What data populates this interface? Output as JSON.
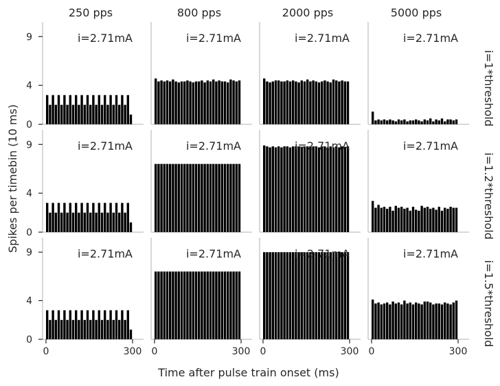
{
  "chart_data": {
    "type": "bar",
    "ylabel": "Spikes per timebin (10 ms)",
    "xlabel": "Time after pulse train onset (ms)",
    "column_titles": [
      "250 pps",
      "800 pps",
      "2000 pps",
      "5000 pps"
    ],
    "row_titles": [
      "i=1*threshold",
      "i=1.2*threshold",
      "i=1.5*threshold"
    ],
    "annotation": "i=2.71mA",
    "xlim": [
      0,
      300
    ],
    "ylim": [
      0,
      10.5
    ],
    "xticks": [
      0,
      300
    ],
    "yticks": [
      0,
      4,
      9
    ],
    "bin_width_ms": 10,
    "grid": false,
    "panels": [
      {
        "row": 0,
        "col": 0,
        "x": [
          0,
          10,
          20,
          30,
          40,
          50,
          60,
          70,
          80,
          90,
          100,
          110,
          120,
          130,
          140,
          150,
          160,
          170,
          180,
          190,
          200,
          210,
          220,
          230,
          240,
          250,
          260,
          270,
          280,
          290
        ],
        "values": [
          3,
          2,
          3,
          2,
          3,
          2,
          3,
          2,
          3,
          2,
          3,
          2,
          3,
          2,
          3,
          2,
          3,
          2,
          3,
          2,
          3,
          2,
          3,
          2,
          3,
          2,
          3,
          2,
          3,
          1
        ]
      },
      {
        "row": 0,
        "col": 1,
        "x": [
          0,
          10,
          20,
          30,
          40,
          50,
          60,
          70,
          80,
          90,
          100,
          110,
          120,
          130,
          140,
          150,
          160,
          170,
          180,
          190,
          200,
          210,
          220,
          230,
          240,
          250,
          260,
          270,
          280,
          290
        ],
        "values": [
          4.7,
          4.4,
          4.5,
          4.4,
          4.5,
          4.4,
          4.6,
          4.4,
          4.3,
          4.4,
          4.4,
          4.5,
          4.4,
          4.3,
          4.4,
          4.4,
          4.5,
          4.3,
          4.5,
          4.4,
          4.6,
          4.4,
          4.5,
          4.4,
          4.4,
          4.3,
          4.6,
          4.5,
          4.4,
          4.5
        ]
      },
      {
        "row": 0,
        "col": 2,
        "x": [
          0,
          10,
          20,
          30,
          40,
          50,
          60,
          70,
          80,
          90,
          100,
          110,
          120,
          130,
          140,
          150,
          160,
          170,
          180,
          190,
          200,
          210,
          220,
          230,
          240,
          250,
          260,
          270,
          280,
          290
        ],
        "values": [
          4.7,
          4.4,
          4.3,
          4.4,
          4.5,
          4.5,
          4.4,
          4.4,
          4.5,
          4.4,
          4.5,
          4.4,
          4.3,
          4.5,
          4.4,
          4.6,
          4.4,
          4.5,
          4.4,
          4.3,
          4.4,
          4.5,
          4.4,
          4.3,
          4.6,
          4.5,
          4.4,
          4.5,
          4.4,
          4.4
        ]
      },
      {
        "row": 0,
        "col": 3,
        "x": [
          0,
          10,
          20,
          30,
          40,
          50,
          60,
          70,
          80,
          90,
          100,
          110,
          120,
          130,
          140,
          150,
          160,
          170,
          180,
          190,
          200,
          210,
          220,
          230,
          240,
          250,
          260,
          270,
          280,
          290
        ],
        "values": [
          1.3,
          0.4,
          0.5,
          0.4,
          0.5,
          0.4,
          0.5,
          0.4,
          0.3,
          0.5,
          0.4,
          0.5,
          0.3,
          0.4,
          0.4,
          0.5,
          0.4,
          0.3,
          0.5,
          0.4,
          0.6,
          0.3,
          0.5,
          0.4,
          0.6,
          0.3,
          0.5,
          0.5,
          0.4,
          0.5
        ]
      },
      {
        "row": 1,
        "col": 0,
        "x": [
          0,
          10,
          20,
          30,
          40,
          50,
          60,
          70,
          80,
          90,
          100,
          110,
          120,
          130,
          140,
          150,
          160,
          170,
          180,
          190,
          200,
          210,
          220,
          230,
          240,
          250,
          260,
          270,
          280,
          290
        ],
        "values": [
          3,
          2,
          3,
          2,
          3,
          2,
          3,
          2,
          3,
          2,
          3,
          2,
          3,
          2,
          3,
          2,
          3,
          2,
          3,
          2,
          3,
          2,
          3,
          2,
          3,
          2,
          3,
          2,
          3,
          1
        ]
      },
      {
        "row": 1,
        "col": 1,
        "x": [
          0,
          10,
          20,
          30,
          40,
          50,
          60,
          70,
          80,
          90,
          100,
          110,
          120,
          130,
          140,
          150,
          160,
          170,
          180,
          190,
          200,
          210,
          220,
          230,
          240,
          250,
          260,
          270,
          280,
          290
        ],
        "values": [
          7,
          7,
          7,
          7,
          7,
          7,
          7,
          7,
          7,
          7,
          7,
          7,
          7,
          7,
          7,
          7,
          7,
          7,
          7,
          7,
          7,
          7,
          7,
          7,
          7,
          7,
          7,
          7,
          7,
          7
        ]
      },
      {
        "row": 1,
        "col": 2,
        "x": [
          0,
          10,
          20,
          30,
          40,
          50,
          60,
          70,
          80,
          90,
          100,
          110,
          120,
          130,
          140,
          150,
          160,
          170,
          180,
          190,
          200,
          210,
          220,
          230,
          240,
          250,
          260,
          270,
          280,
          290
        ],
        "values": [
          8.9,
          8.8,
          8.7,
          8.8,
          8.7,
          8.8,
          8.7,
          8.8,
          8.8,
          8.7,
          8.8,
          8.8,
          8.8,
          8.7,
          8.8,
          8.8,
          8.8,
          8.8,
          8.8,
          8.7,
          8.8,
          8.8,
          8.7,
          8.8,
          8.7,
          8.8,
          8.7,
          8.8,
          8.7,
          8.8
        ]
      },
      {
        "row": 1,
        "col": 3,
        "x": [
          0,
          10,
          20,
          30,
          40,
          50,
          60,
          70,
          80,
          90,
          100,
          110,
          120,
          130,
          140,
          150,
          160,
          170,
          180,
          190,
          200,
          210,
          220,
          230,
          240,
          250,
          260,
          270,
          280,
          290
        ],
        "values": [
          3.2,
          2.5,
          2.8,
          2.5,
          2.6,
          2.4,
          2.6,
          2.2,
          2.7,
          2.5,
          2.6,
          2.4,
          2.5,
          2.2,
          2.6,
          2.3,
          2.2,
          2.7,
          2.5,
          2.6,
          2.4,
          2.5,
          2.3,
          2.6,
          2.2,
          2.5,
          2.4,
          2.6,
          2.5,
          2.5
        ]
      },
      {
        "row": 2,
        "col": 0,
        "x": [
          0,
          10,
          20,
          30,
          40,
          50,
          60,
          70,
          80,
          90,
          100,
          110,
          120,
          130,
          140,
          150,
          160,
          170,
          180,
          190,
          200,
          210,
          220,
          230,
          240,
          250,
          260,
          270,
          280,
          290
        ],
        "values": [
          3,
          2,
          3,
          2,
          3,
          2,
          3,
          2,
          3,
          2,
          3,
          2,
          3,
          2,
          3,
          2,
          3,
          2,
          3,
          2,
          3,
          2,
          3,
          2,
          3,
          2,
          3,
          2,
          3,
          1
        ]
      },
      {
        "row": 2,
        "col": 1,
        "x": [
          0,
          10,
          20,
          30,
          40,
          50,
          60,
          70,
          80,
          90,
          100,
          110,
          120,
          130,
          140,
          150,
          160,
          170,
          180,
          190,
          200,
          210,
          220,
          230,
          240,
          250,
          260,
          270,
          280,
          290
        ],
        "values": [
          7,
          7,
          7,
          7,
          7,
          7,
          7,
          7,
          7,
          7,
          7,
          7,
          7,
          7,
          7,
          7,
          7,
          7,
          7,
          7,
          7,
          7,
          7,
          7,
          7,
          7,
          7,
          7,
          7,
          7
        ]
      },
      {
        "row": 2,
        "col": 2,
        "x": [
          0,
          10,
          20,
          30,
          40,
          50,
          60,
          70,
          80,
          90,
          100,
          110,
          120,
          130,
          140,
          150,
          160,
          170,
          180,
          190,
          200,
          210,
          220,
          230,
          240,
          250,
          260,
          270,
          280,
          290
        ],
        "values": [
          9,
          9,
          9,
          9,
          9,
          9,
          9,
          9,
          9,
          9,
          9,
          9,
          9,
          9,
          9,
          9,
          9,
          9,
          9,
          9,
          9,
          9,
          9,
          9,
          9,
          9,
          9,
          9,
          9,
          9
        ]
      },
      {
        "row": 2,
        "col": 3,
        "x": [
          0,
          10,
          20,
          30,
          40,
          50,
          60,
          70,
          80,
          90,
          100,
          110,
          120,
          130,
          140,
          150,
          160,
          170,
          180,
          190,
          200,
          210,
          220,
          230,
          240,
          250,
          260,
          270,
          280,
          290
        ],
        "values": [
          4.1,
          3.7,
          3.8,
          3.6,
          3.7,
          3.8,
          3.6,
          3.9,
          3.7,
          3.8,
          3.6,
          4.0,
          3.7,
          3.8,
          3.6,
          3.8,
          3.7,
          3.6,
          3.9,
          3.9,
          3.8,
          3.6,
          3.7,
          3.7,
          3.6,
          3.8,
          3.7,
          3.6,
          3.8,
          4.0
        ]
      }
    ]
  }
}
